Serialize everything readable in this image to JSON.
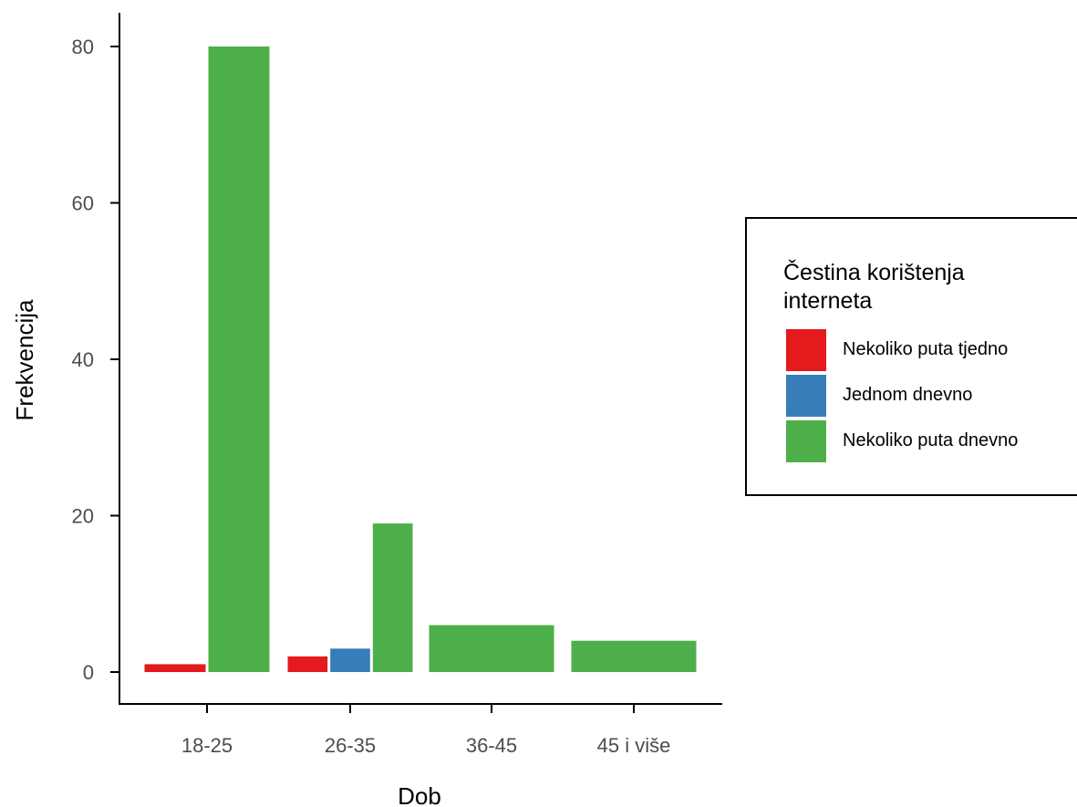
{
  "chart_data": {
    "type": "bar",
    "title": "",
    "xlabel": "Dob",
    "ylabel": "Frekvencija",
    "categories": [
      "18-25",
      "26-35",
      "36-45",
      "45 i više"
    ],
    "ylim": [
      0,
      80
    ],
    "yticks": [
      0,
      20,
      40,
      60,
      80
    ],
    "grid": false,
    "legend_position": "right",
    "legend_title": "Čestina korištenja interneta",
    "series": [
      {
        "name": "Nekoliko puta tjedno",
        "color": "#e41a1c",
        "values": [
          1,
          2,
          null,
          null
        ]
      },
      {
        "name": "Jednom dnevno",
        "color": "#377eb8",
        "values": [
          null,
          3,
          null,
          null
        ]
      },
      {
        "name": "Nekoliko puta dnevno",
        "color": "#4daf4a",
        "values": [
          80,
          19,
          6,
          4
        ]
      }
    ]
  }
}
